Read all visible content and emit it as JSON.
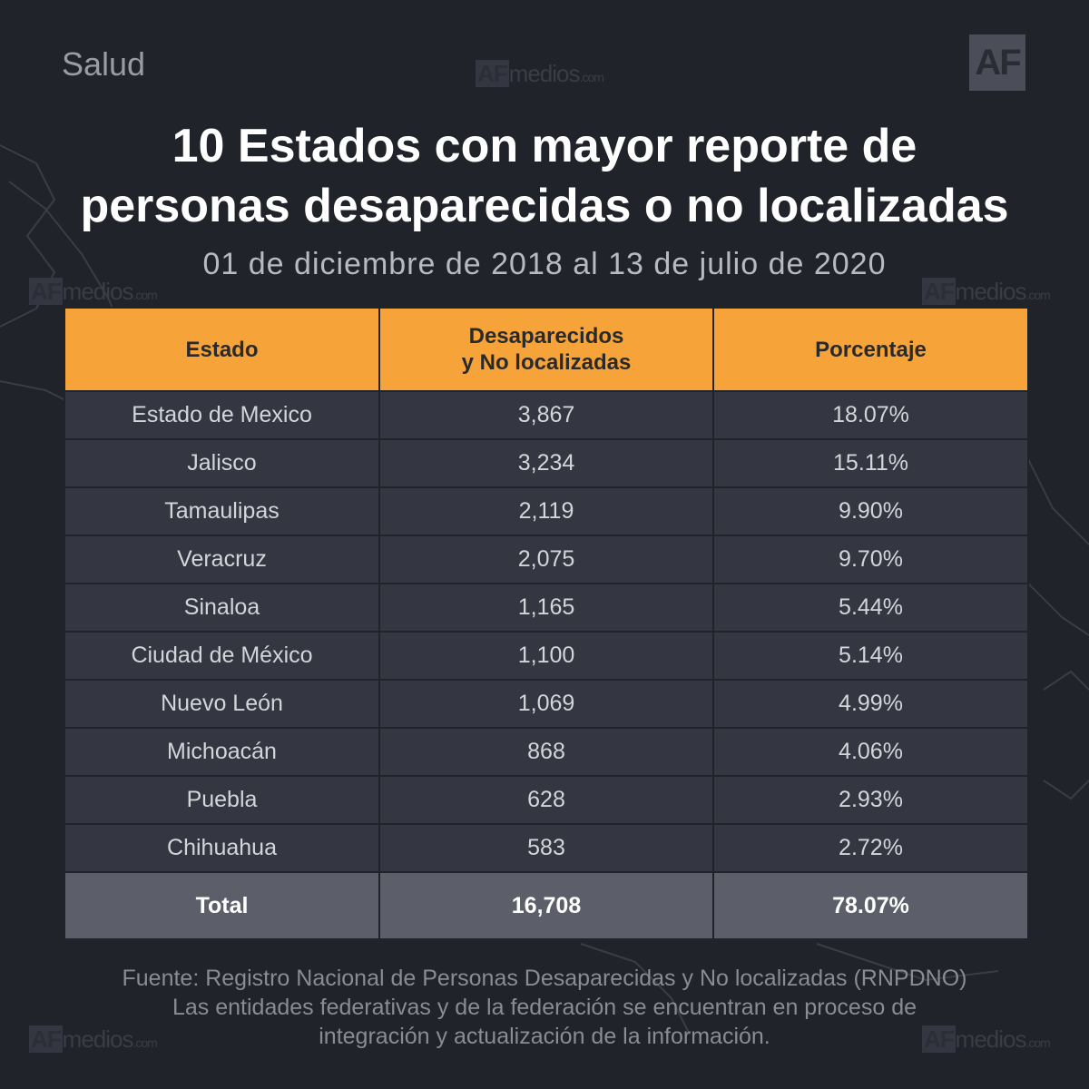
{
  "header": {
    "section": "Salud",
    "logo": "AF",
    "title_line1": "10 Estados con mayor reporte de",
    "title_line2": "personas desaparecidas o no localizadas",
    "subtitle": "01 de diciembre de 2018 al 13 de julio de 2020"
  },
  "watermark": {
    "af": "AF",
    "text": "medios",
    "suffix": ".com"
  },
  "chart_data": {
    "type": "table",
    "columns": [
      "Estado",
      "Desaparecidos\ny No localizadas",
      "Porcentaje"
    ],
    "column_line1": [
      "Estado",
      "Desaparecidos",
      "Porcentaje"
    ],
    "column_line2": [
      "",
      "y No localizadas",
      ""
    ],
    "rows": [
      [
        "Estado de Mexico",
        "3,867",
        "18.07%"
      ],
      [
        "Jalisco",
        "3,234",
        "15.11%"
      ],
      [
        "Tamaulipas",
        "2,119",
        "9.90%"
      ],
      [
        "Veracruz",
        "2,075",
        "9.70%"
      ],
      [
        "Sinaloa",
        "1,165",
        "5.44%"
      ],
      [
        "Ciudad de México",
        "1,100",
        "5.14%"
      ],
      [
        "Nuevo León",
        "1,069",
        "4.99%"
      ],
      [
        "Michoacán",
        "868",
        "4.06%"
      ],
      [
        "Puebla",
        "628",
        "2.93%"
      ],
      [
        "Chihuahua",
        "583",
        "2.72%"
      ]
    ],
    "total": [
      "Total",
      "16,708",
      "78.07%"
    ],
    "colors": {
      "header_bg": "#f6a33a",
      "row_bg": "#343741",
      "total_bg": "#5c5f69",
      "background": "#21232b"
    }
  },
  "footer": {
    "line1": "Fuente: Registro Nacional de Personas Desaparecidas y No localizadas (RNPDNO)",
    "line2": "Las entidades federativas y de la federación se encuentran en proceso de",
    "line3": "integración y actualización de la información."
  }
}
